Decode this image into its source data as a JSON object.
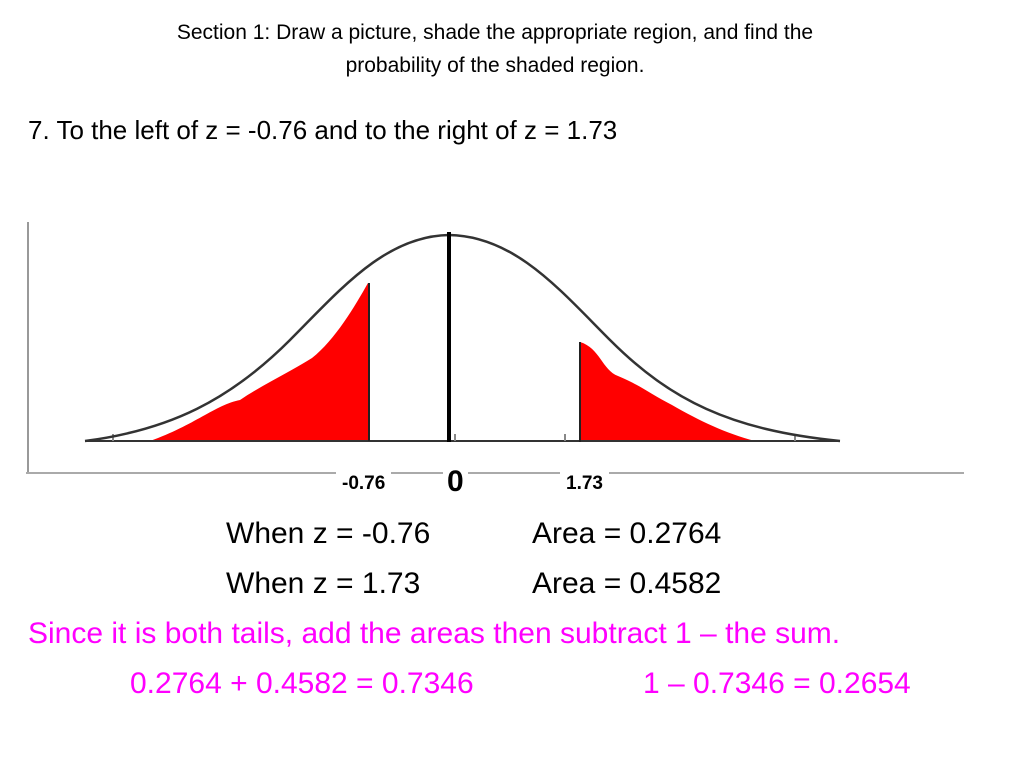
{
  "header": {
    "line1": "Section 1: Draw a picture, shade the appropriate region, and find the",
    "line2": "probability of the shaded region."
  },
  "question": "7. To the left of z = -0.76 and to the right of z = 1.73",
  "figure": {
    "left_z_label": "-0.76",
    "center_label": "0",
    "right_z_label": "1.73",
    "shade_color": "#ff0000"
  },
  "results": [
    {
      "when": "When z = -0.76",
      "area": "Area = 0.2764"
    },
    {
      "when": "When z = 1.73",
      "area": "Area = 0.4582"
    }
  ],
  "explanation": "Since it is both tails, add the areas then subtract 1 – the sum.",
  "calculation": {
    "sum": "0.2764 + 0.4582 = 0.7346",
    "difference": "1 – 0.7346 = 0.2654"
  },
  "accent_color": "#ff00ff"
}
